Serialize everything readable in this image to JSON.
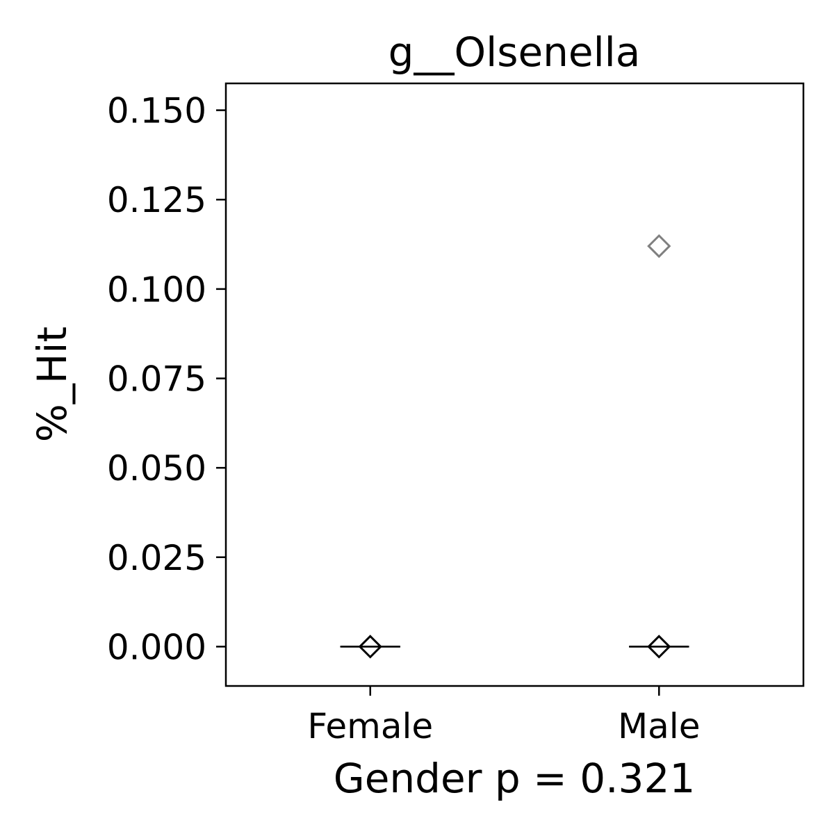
{
  "chart_data": {
    "type": "box",
    "title": "g__Olsenella",
    "xlabel": "Gender p = 0.321",
    "ylabel": "%_Hit",
    "categories": [
      "Female",
      "Male"
    ],
    "ylim": [
      -0.011,
      0.1575
    ],
    "yticks": [
      "0.000",
      "0.025",
      "0.050",
      "0.075",
      "0.100",
      "0.125",
      "0.150"
    ],
    "grid": false,
    "groups": [
      {
        "name": "Female",
        "q1": 0,
        "median": 0,
        "q3": 0,
        "whisker_low": 0,
        "whisker_high": 0,
        "mean": 0,
        "outliers": []
      },
      {
        "name": "Male",
        "q1": 0,
        "median": 0,
        "q3": 0,
        "whisker_low": 0,
        "whisker_high": 0,
        "mean": 0,
        "outliers": [
          0.112
        ]
      }
    ],
    "colors": {
      "box": "#000000",
      "outlier": "#808080",
      "axis": "#000000"
    }
  }
}
